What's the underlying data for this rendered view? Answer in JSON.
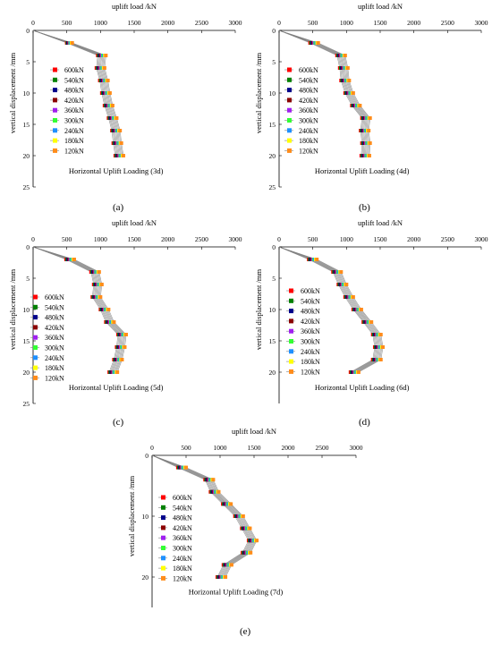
{
  "figure": {
    "panels": [
      {
        "id": "a",
        "tag": "(a)"
      },
      {
        "id": "b",
        "tag": "(b)"
      },
      {
        "id": "c",
        "tag": "(c)"
      },
      {
        "id": "d",
        "tag": "(d)"
      },
      {
        "id": "e",
        "tag": "(e)"
      }
    ]
  },
  "chart_data": [
    {
      "type": "line",
      "panel": "(a)",
      "title": "Horizontal Uplift Loading (3d)",
      "xlabel": "uplift load /kN",
      "ylabel": "vertical displacement /mm",
      "xlim": [
        0,
        3000
      ],
      "ylim": [
        0,
        25
      ],
      "y_inverted": true,
      "x_axis_position": "top",
      "xticks": [
        "0",
        "500",
        "1000",
        "1500",
        "2000",
        "2500",
        "3000"
      ],
      "yticks": [
        "0",
        "5",
        "10",
        "15",
        "20",
        "25"
      ],
      "grid": false,
      "legend_position": "left",
      "y": [
        0,
        2,
        4,
        6,
        8,
        10,
        12,
        14,
        16,
        18,
        20
      ],
      "series": [
        {
          "name": "600kN",
          "color": "#ff0000",
          "x": [
            0,
            500,
            960,
            940,
            990,
            1020,
            1060,
            1120,
            1170,
            1190,
            1220
          ]
        },
        {
          "name": "540kN",
          "color": "#008000",
          "x": [
            0,
            510,
            975,
            955,
            1005,
            1035,
            1075,
            1135,
            1185,
            1205,
            1235
          ]
        },
        {
          "name": "480kN",
          "color": "#00008b",
          "x": [
            0,
            520,
            990,
            970,
            1020,
            1050,
            1090,
            1150,
            1200,
            1220,
            1250
          ]
        },
        {
          "name": "420kN",
          "color": "#8b0000",
          "x": [
            0,
            530,
            1005,
            985,
            1035,
            1065,
            1105,
            1165,
            1215,
            1235,
            1265
          ]
        },
        {
          "name": "360kN",
          "color": "#a020f0",
          "x": [
            0,
            540,
            1020,
            1000,
            1050,
            1080,
            1120,
            1180,
            1230,
            1250,
            1280
          ]
        },
        {
          "name": "300kN",
          "color": "#33ff33",
          "x": [
            0,
            550,
            1035,
            1015,
            1065,
            1095,
            1135,
            1195,
            1245,
            1265,
            1295
          ]
        },
        {
          "name": "240kN",
          "color": "#1e90ff",
          "x": [
            0,
            560,
            1050,
            1030,
            1080,
            1110,
            1150,
            1210,
            1260,
            1280,
            1310
          ]
        },
        {
          "name": "180kN",
          "color": "#ffff00",
          "x": [
            0,
            570,
            1065,
            1045,
            1095,
            1125,
            1165,
            1225,
            1275,
            1295,
            1325
          ]
        },
        {
          "name": "120kN",
          "color": "#ff8c1a",
          "x": [
            0,
            580,
            1080,
            1060,
            1110,
            1140,
            1180,
            1240,
            1290,
            1310,
            1340
          ]
        }
      ]
    },
    {
      "type": "line",
      "panel": "(b)",
      "title": "Horizontal Uplift Loading (4d)",
      "xlabel": "uplift load /kN",
      "ylabel": "vertical displacement /mm",
      "xlim": [
        0,
        3000
      ],
      "ylim": [
        0,
        25
      ],
      "y_inverted": true,
      "x_axis_position": "top",
      "xticks": [
        "0",
        "500",
        "1000",
        "1500",
        "2000",
        "2500",
        "3000"
      ],
      "yticks": [
        "0",
        "5",
        "10",
        "15",
        "20",
        "25"
      ],
      "grid": false,
      "legend_position": "left",
      "y": [
        0,
        2,
        4,
        6,
        8,
        10,
        12,
        14,
        16,
        18,
        20
      ],
      "series": [
        {
          "name": "600kN",
          "color": "#ff0000",
          "x": [
            0,
            460,
            860,
            900,
            920,
            980,
            1080,
            1230,
            1210,
            1230,
            1220
          ]
        },
        {
          "name": "540kN",
          "color": "#008000",
          "x": [
            0,
            475,
            875,
            915,
            935,
            995,
            1095,
            1245,
            1225,
            1245,
            1235
          ]
        },
        {
          "name": "480kN",
          "color": "#00008b",
          "x": [
            0,
            490,
            890,
            930,
            950,
            1010,
            1110,
            1260,
            1240,
            1260,
            1250
          ]
        },
        {
          "name": "420kN",
          "color": "#8b0000",
          "x": [
            0,
            505,
            905,
            945,
            965,
            1025,
            1125,
            1275,
            1255,
            1275,
            1265
          ]
        },
        {
          "name": "360kN",
          "color": "#a020f0",
          "x": [
            0,
            520,
            920,
            960,
            980,
            1040,
            1140,
            1290,
            1270,
            1290,
            1280
          ]
        },
        {
          "name": "300kN",
          "color": "#33ff33",
          "x": [
            0,
            535,
            935,
            975,
            995,
            1055,
            1155,
            1305,
            1285,
            1305,
            1295
          ]
        },
        {
          "name": "240kN",
          "color": "#1e90ff",
          "x": [
            0,
            550,
            950,
            990,
            1010,
            1070,
            1170,
            1320,
            1300,
            1320,
            1310
          ]
        },
        {
          "name": "180kN",
          "color": "#ffff00",
          "x": [
            0,
            565,
            965,
            1005,
            1025,
            1085,
            1185,
            1335,
            1315,
            1335,
            1325
          ]
        },
        {
          "name": "120kN",
          "color": "#ff8c1a",
          "x": [
            0,
            580,
            980,
            1020,
            1040,
            1100,
            1200,
            1350,
            1330,
            1350,
            1340
          ]
        }
      ]
    },
    {
      "type": "line",
      "panel": "(c)",
      "title": "Horizontal Uplift Loading (5d)",
      "xlabel": "uplift load /kN",
      "ylabel": "vertical displacement /mm",
      "xlim": [
        0,
        3000
      ],
      "ylim": [
        0,
        25
      ],
      "y_inverted": true,
      "x_axis_position": "top",
      "xticks": [
        "0",
        "500",
        "1000",
        "1500",
        "2000",
        "2500",
        "3000"
      ],
      "yticks": [
        "0",
        "5",
        "10",
        "15",
        "20",
        "25"
      ],
      "grid": false,
      "legend_position": "left",
      "y": [
        0,
        2,
        4,
        6,
        8,
        10,
        12,
        14,
        16,
        18,
        20
      ],
      "series": [
        {
          "name": "600kN",
          "color": "#ff0000",
          "x": [
            0,
            490,
            860,
            900,
            880,
            1000,
            1080,
            1260,
            1240,
            1200,
            1130
          ]
        },
        {
          "name": "540kN",
          "color": "#008000",
          "x": [
            0,
            505,
            875,
            915,
            895,
            1015,
            1095,
            1275,
            1255,
            1215,
            1145
          ]
        },
        {
          "name": "480kN",
          "color": "#00008b",
          "x": [
            0,
            520,
            890,
            930,
            910,
            1030,
            1110,
            1290,
            1270,
            1230,
            1160
          ]
        },
        {
          "name": "420kN",
          "color": "#8b0000",
          "x": [
            0,
            535,
            905,
            945,
            925,
            1045,
            1125,
            1305,
            1285,
            1245,
            1175
          ]
        },
        {
          "name": "360kN",
          "color": "#a020f0",
          "x": [
            0,
            550,
            920,
            960,
            940,
            1060,
            1140,
            1320,
            1300,
            1260,
            1190
          ]
        },
        {
          "name": "300kN",
          "color": "#33ff33",
          "x": [
            0,
            565,
            935,
            975,
            955,
            1075,
            1155,
            1335,
            1315,
            1275,
            1205
          ]
        },
        {
          "name": "240kN",
          "color": "#1e90ff",
          "x": [
            0,
            580,
            950,
            990,
            970,
            1090,
            1170,
            1350,
            1330,
            1290,
            1220
          ]
        },
        {
          "name": "180kN",
          "color": "#ffff00",
          "x": [
            0,
            595,
            965,
            1005,
            985,
            1105,
            1185,
            1365,
            1345,
            1305,
            1235
          ]
        },
        {
          "name": "120kN",
          "color": "#ff8c1a",
          "x": [
            0,
            610,
            980,
            1020,
            1000,
            1120,
            1200,
            1380,
            1360,
            1320,
            1250
          ]
        }
      ]
    },
    {
      "type": "line",
      "panel": "(d)",
      "title": "Horizontal Uplift Loading (6d)",
      "xlabel": "uplift load /kN",
      "ylabel": "vertical displacement /mm",
      "xlim": [
        0,
        3000
      ],
      "ylim": [
        0,
        25
      ],
      "y_inverted": true,
      "x_axis_position": "top",
      "xticks": [
        "0",
        "500",
        "1000",
        "1500",
        "2000",
        "2500",
        "3000"
      ],
      "yticks": [
        "0",
        "5",
        "10",
        "15",
        "20"
      ],
      "grid": false,
      "legend_position": "left",
      "y": [
        0,
        2,
        4,
        6,
        8,
        10,
        12,
        14,
        16,
        18,
        20
      ],
      "series": [
        {
          "name": "600kN",
          "color": "#ff0000",
          "x": [
            0,
            440,
            800,
            880,
            980,
            1100,
            1250,
            1390,
            1420,
            1390,
            1060
          ]
        },
        {
          "name": "540kN",
          "color": "#008000",
          "x": [
            0,
            455,
            815,
            895,
            995,
            1115,
            1265,
            1405,
            1435,
            1405,
            1075
          ]
        },
        {
          "name": "480kN",
          "color": "#00008b",
          "x": [
            0,
            470,
            830,
            910,
            1010,
            1130,
            1280,
            1420,
            1450,
            1420,
            1090
          ]
        },
        {
          "name": "420kN",
          "color": "#8b0000",
          "x": [
            0,
            485,
            845,
            925,
            1025,
            1145,
            1295,
            1435,
            1465,
            1435,
            1105
          ]
        },
        {
          "name": "360kN",
          "color": "#a020f0",
          "x": [
            0,
            500,
            860,
            940,
            1040,
            1160,
            1310,
            1450,
            1480,
            1450,
            1120
          ]
        },
        {
          "name": "300kN",
          "color": "#33ff33",
          "x": [
            0,
            515,
            875,
            955,
            1055,
            1175,
            1325,
            1465,
            1495,
            1465,
            1135
          ]
        },
        {
          "name": "240kN",
          "color": "#1e90ff",
          "x": [
            0,
            530,
            890,
            970,
            1070,
            1190,
            1340,
            1480,
            1510,
            1480,
            1150
          ]
        },
        {
          "name": "180kN",
          "color": "#ffff00",
          "x": [
            0,
            545,
            905,
            985,
            1085,
            1205,
            1355,
            1495,
            1525,
            1495,
            1165
          ]
        },
        {
          "name": "120kN",
          "color": "#ff8c1a",
          "x": [
            0,
            560,
            920,
            1000,
            1100,
            1220,
            1370,
            1510,
            1540,
            1510,
            1180
          ]
        }
      ]
    },
    {
      "type": "line",
      "panel": "(e)",
      "title": "Horizontal Uplift Loading (7d)",
      "xlabel": "uplift load /kN",
      "ylabel": "vertical displacement /mm",
      "xlim": [
        0,
        3000
      ],
      "ylim": [
        0,
        25
      ],
      "y_inverted": true,
      "x_axis_position": "top",
      "xticks": [
        "0",
        "500",
        "1000",
        "1500",
        "2000",
        "2500",
        "3000"
      ],
      "yticks": [
        "0",
        "10",
        "20"
      ],
      "grid": false,
      "legend_position": "left",
      "y": [
        0,
        2,
        4,
        6,
        8,
        10,
        12,
        14,
        16,
        18,
        20
      ],
      "series": [
        {
          "name": "600kN",
          "color": "#ff0000",
          "x": [
            0,
            380,
            780,
            860,
            1040,
            1220,
            1320,
            1420,
            1330,
            1050,
            960
          ]
        },
        {
          "name": "540kN",
          "color": "#008000",
          "x": [
            0,
            395,
            795,
            875,
            1055,
            1235,
            1335,
            1435,
            1345,
            1065,
            975
          ]
        },
        {
          "name": "480kN",
          "color": "#00008b",
          "x": [
            0,
            410,
            810,
            890,
            1070,
            1250,
            1350,
            1450,
            1360,
            1080,
            990
          ]
        },
        {
          "name": "420kN",
          "color": "#8b0000",
          "x": [
            0,
            425,
            825,
            905,
            1085,
            1265,
            1365,
            1465,
            1375,
            1095,
            1005
          ]
        },
        {
          "name": "360kN",
          "color": "#a020f0",
          "x": [
            0,
            440,
            840,
            920,
            1100,
            1280,
            1380,
            1480,
            1390,
            1110,
            1020
          ]
        },
        {
          "name": "300kN",
          "color": "#33ff33",
          "x": [
            0,
            455,
            855,
            935,
            1115,
            1295,
            1395,
            1495,
            1405,
            1125,
            1035
          ]
        },
        {
          "name": "240kN",
          "color": "#1e90ff",
          "x": [
            0,
            470,
            870,
            950,
            1130,
            1310,
            1410,
            1510,
            1420,
            1140,
            1050
          ]
        },
        {
          "name": "180kN",
          "color": "#ffff00",
          "x": [
            0,
            485,
            885,
            965,
            1145,
            1325,
            1425,
            1525,
            1435,
            1155,
            1065
          ]
        },
        {
          "name": "120kN",
          "color": "#ff8c1a",
          "x": [
            0,
            500,
            900,
            980,
            1160,
            1340,
            1440,
            1540,
            1450,
            1170,
            1080
          ]
        }
      ]
    }
  ]
}
